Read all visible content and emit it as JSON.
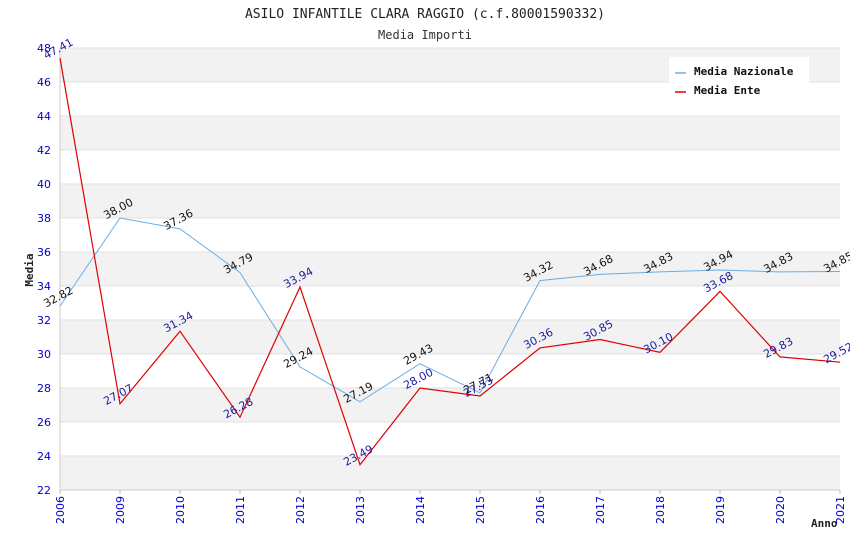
{
  "chart_data": {
    "type": "line",
    "title": "ASILO INFANTILE CLARA RAGGIO (c.f.80001590332)",
    "subtitle": "Media Importi",
    "xlabel": "Anno",
    "ylabel": "Media",
    "categories": [
      "2006",
      "2009",
      "2010",
      "2011",
      "2012",
      "2013",
      "2014",
      "2015",
      "2016",
      "2017",
      "2018",
      "2019",
      "2020",
      "2021"
    ],
    "ylim": [
      22,
      48
    ],
    "yticks": [
      22,
      24,
      26,
      28,
      30,
      32,
      34,
      36,
      38,
      40,
      42,
      44,
      46,
      48
    ],
    "grid": "horizontal bands",
    "legend_position": "top-right",
    "series": [
      {
        "name": "Media Nazionale",
        "color": "#6aaee6",
        "values": [
          32.82,
          38.0,
          37.36,
          34.79,
          29.24,
          27.19,
          29.43,
          27.71,
          34.32,
          34.68,
          34.83,
          34.94,
          34.83,
          34.85
        ],
        "labels": [
          "32.82",
          "38.00",
          "37.36",
          "34.79",
          "29.24",
          "27.19",
          "29.43",
          "27.71",
          "34.32",
          "34.68",
          "34.83",
          "34.94",
          "34.83",
          "34.85"
        ]
      },
      {
        "name": "Media Ente",
        "color": "#e00000",
        "values": [
          47.41,
          27.07,
          31.34,
          26.28,
          33.94,
          23.49,
          28.0,
          27.53,
          30.36,
          30.85,
          30.1,
          33.68,
          29.83,
          29.52
        ],
        "labels": [
          "47.41",
          "27.07",
          "31.34",
          "26.28",
          "33.94",
          "23.49",
          "28.00",
          "27.53",
          "30.36",
          "30.85",
          "30.10",
          "33.68",
          "29.83",
          "29.52"
        ]
      }
    ]
  }
}
